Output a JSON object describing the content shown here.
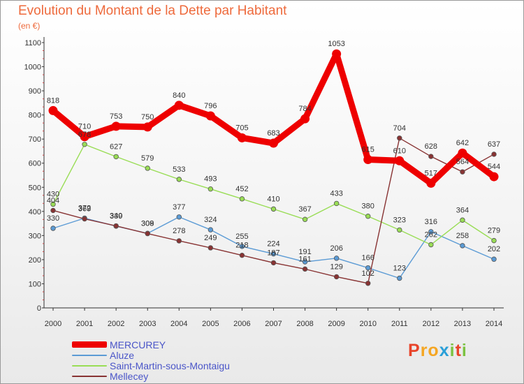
{
  "chart_data": {
    "type": "line",
    "title": "Evolution du Montant de la Dette par Habitant",
    "subtitle": "(en €)",
    "categories": [
      "2000",
      "2001",
      "2002",
      "2003",
      "2004",
      "2005",
      "2006",
      "2007",
      "2008",
      "2009",
      "2010",
      "2011",
      "2012",
      "2013",
      "2014"
    ],
    "ylim": [
      0,
      1100
    ],
    "yticks": [
      0,
      100,
      200,
      300,
      400,
      500,
      600,
      700,
      800,
      900,
      1000,
      1100
    ],
    "grid": false,
    "legend_position": "bottom-left",
    "series": [
      {
        "name": "MERCUREY",
        "color": "#ee0000",
        "emphasis": true,
        "values": [
          818,
          710,
          753,
          750,
          840,
          796,
          705,
          683,
          784,
          1053,
          615,
          610,
          517,
          642,
          544
        ],
        "labels": [
          "818",
          "710",
          "753",
          "750",
          "840",
          "796",
          "705",
          "683",
          "784",
          "1053",
          "615",
          "610",
          "517",
          "642",
          "544"
        ]
      },
      {
        "name": "Aluze",
        "color": "#5b9bd5",
        "values": [
          330,
          372,
          339,
          309,
          377,
          324,
          255,
          224,
          191,
          206,
          166,
          123,
          316,
          258,
          202
        ],
        "labels": [
          "330",
          "372",
          "339",
          "309",
          "377",
          "324",
          "255",
          "224",
          "191",
          "206",
          "166",
          "123",
          "316",
          "258",
          "202"
        ]
      },
      {
        "name": "Saint-Martin-sous-Montaigu",
        "color": "#99dd55",
        "values": [
          430,
          678,
          627,
          579,
          533,
          493,
          452,
          410,
          367,
          433,
          380,
          323,
          262,
          364,
          279
        ],
        "labels": [
          "430",
          "678",
          "627",
          "579",
          "533",
          "493",
          "452",
          "410",
          "367",
          "433",
          "380",
          "323",
          "262",
          "364",
          "279"
        ]
      },
      {
        "name": "Mellecey",
        "color": "#883333",
        "values": [
          404,
          369,
          340,
          308,
          278,
          249,
          218,
          187,
          161,
          129,
          102,
          704,
          628,
          564,
          637
        ],
        "labels": [
          "404",
          "369",
          "340",
          "308",
          "278",
          "249",
          "218",
          "187",
          "161",
          "129",
          "102",
          "704",
          "628",
          "564",
          "637"
        ]
      }
    ]
  },
  "logo": {
    "letters": [
      "P",
      "r",
      "o",
      "x",
      "i",
      "t",
      "i"
    ],
    "colors": [
      "#e8442a",
      "#f5a623",
      "#f5a623",
      "#2a9fd8",
      "#7cc242",
      "#e8442a",
      "#7cc242"
    ]
  }
}
